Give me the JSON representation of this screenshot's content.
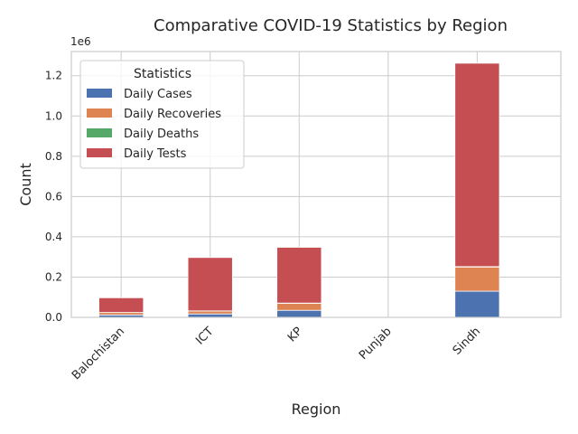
{
  "chart_data": {
    "type": "bar",
    "stacked": true,
    "title": "Comparative COVID-19 Statistics by Region",
    "xlabel": "Region",
    "ylabel": "Count",
    "y_offset_label": "1e6",
    "categories": [
      "Balochistan",
      "ICT",
      "KP",
      "Punjab",
      "Sindh"
    ],
    "ylim": [
      0,
      1.32
    ],
    "yticks": [
      "0.0",
      "0.2",
      "0.4",
      "0.6",
      "0.8",
      "1.0",
      "1.2"
    ],
    "ytick_values": [
      0,
      0.2,
      0.4,
      0.6,
      0.8,
      1.0,
      1.2
    ],
    "grid": true,
    "legend": {
      "title": "Statistics",
      "placement": "top-left"
    },
    "series": [
      {
        "name": "Daily Cases",
        "color": "#4c72b0",
        "values": [
          0.012,
          0.017,
          0.035,
          0,
          0.13
        ]
      },
      {
        "name": "Daily Recoveries",
        "color": "#dd8452",
        "values": [
          0.012,
          0.015,
          0.035,
          0,
          0.12
        ]
      },
      {
        "name": "Daily Deaths",
        "color": "#55a868",
        "values": [
          0.0004,
          0.0002,
          0.001,
          0,
          0.002
        ]
      },
      {
        "name": "Daily Tests",
        "color": "#c44e52",
        "values": [
          0.073,
          0.265,
          0.277,
          0,
          1.01
        ]
      }
    ]
  }
}
